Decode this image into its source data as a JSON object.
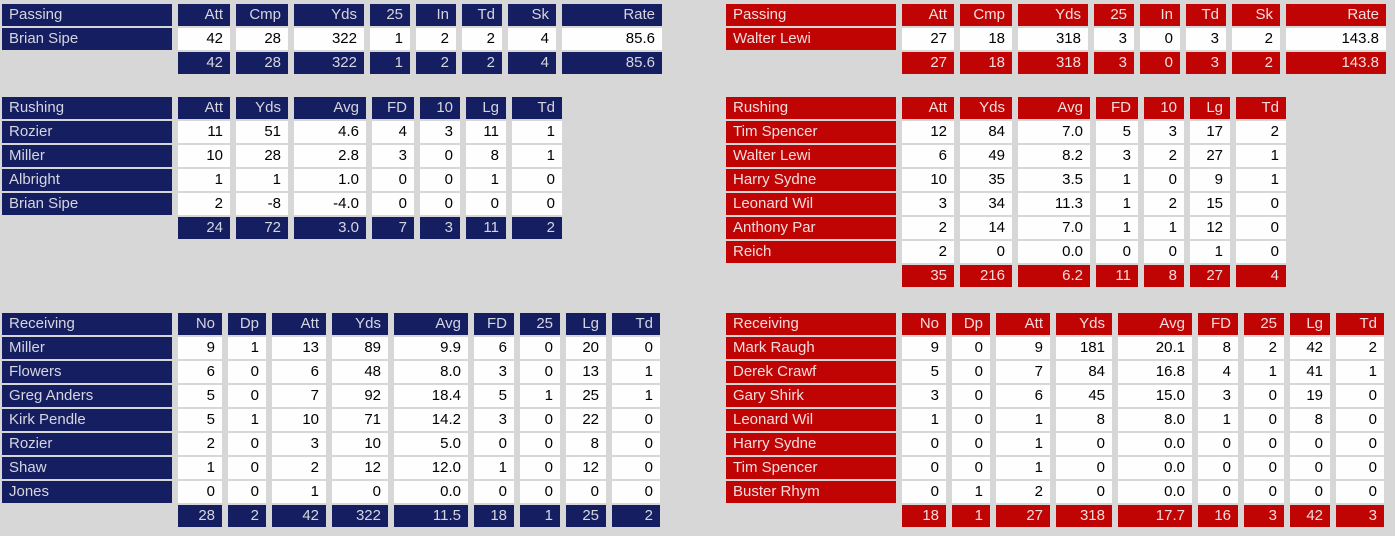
{
  "page": {
    "background": "#d7d7d7"
  },
  "colors": {
    "team_a_accent": "#141e61",
    "team_a_accent_text": "#d6d6de",
    "team_b_accent": "#c00404",
    "team_b_accent_text": "#f2dede",
    "stat_cell_background": "#fefefe",
    "stat_cell_text": "#000000"
  },
  "teams": [
    {
      "name": "team-a",
      "accent": "#141e61",
      "accent_text": "#d6d6de",
      "tables": {
        "passing": {
          "title": "Passing",
          "headers": [
            "Att",
            "Cmp",
            "Yds",
            "25",
            "In",
            "Td",
            "Sk",
            "Rate"
          ],
          "rows": [
            {
              "name": "Brian Sipe",
              "values": [
                "42",
                "28",
                "322",
                "1",
                "2",
                "2",
                "4",
                "85.6"
              ]
            }
          ],
          "totals": [
            "42",
            "28",
            "322",
            "1",
            "2",
            "2",
            "4",
            "85.6"
          ]
        },
        "rushing": {
          "title": "Rushing",
          "headers": [
            "Att",
            "Yds",
            "Avg",
            "FD",
            "10",
            "Lg",
            "Td"
          ],
          "rows": [
            {
              "name": "Rozier",
              "values": [
                "11",
                "51",
                "4.6",
                "4",
                "3",
                "11",
                "1"
              ]
            },
            {
              "name": "Miller",
              "values": [
                "10",
                "28",
                "2.8",
                "3",
                "0",
                "8",
                "1"
              ]
            },
            {
              "name": "Albright",
              "values": [
                "1",
                "1",
                "1.0",
                "0",
                "0",
                "1",
                "0"
              ]
            },
            {
              "name": "Brian Sipe",
              "values": [
                "2",
                "-8",
                "-4.0",
                "0",
                "0",
                "0",
                "0"
              ]
            }
          ],
          "totals": [
            "24",
            "72",
            "3.0",
            "7",
            "3",
            "11",
            "2"
          ]
        },
        "receiving": {
          "title": "Receiving",
          "headers": [
            "No",
            "Dp",
            "Att",
            "Yds",
            "Avg",
            "FD",
            "25",
            "Lg",
            "Td"
          ],
          "rows": [
            {
              "name": "Miller",
              "values": [
                "9",
                "1",
                "13",
                "89",
                "9.9",
                "6",
                "0",
                "20",
                "0"
              ]
            },
            {
              "name": "Flowers",
              "values": [
                "6",
                "0",
                "6",
                "48",
                "8.0",
                "3",
                "0",
                "13",
                "1"
              ]
            },
            {
              "name": "Greg Anders",
              "values": [
                "5",
                "0",
                "7",
                "92",
                "18.4",
                "5",
                "1",
                "25",
                "1"
              ]
            },
            {
              "name": "Kirk Pendle",
              "values": [
                "5",
                "1",
                "10",
                "71",
                "14.2",
                "3",
                "0",
                "22",
                "0"
              ]
            },
            {
              "name": "Rozier",
              "values": [
                "2",
                "0",
                "3",
                "10",
                "5.0",
                "0",
                "0",
                "8",
                "0"
              ]
            },
            {
              "name": "Shaw",
              "values": [
                "1",
                "0",
                "2",
                "12",
                "12.0",
                "1",
                "0",
                "12",
                "0"
              ]
            },
            {
              "name": "Jones",
              "values": [
                "0",
                "0",
                "1",
                "0",
                "0.0",
                "0",
                "0",
                "0",
                "0"
              ]
            }
          ],
          "totals": [
            "28",
            "2",
            "42",
            "322",
            "11.5",
            "18",
            "1",
            "25",
            "2"
          ]
        }
      }
    },
    {
      "name": "team-b",
      "accent": "#c00404",
      "accent_text": "#f2dede",
      "tables": {
        "passing": {
          "title": "Passing",
          "headers": [
            "Att",
            "Cmp",
            "Yds",
            "25",
            "In",
            "Td",
            "Sk",
            "Rate"
          ],
          "rows": [
            {
              "name": "Walter Lewi",
              "values": [
                "27",
                "18",
                "318",
                "3",
                "0",
                "3",
                "2",
                "143.8"
              ]
            }
          ],
          "totals": [
            "27",
            "18",
            "318",
            "3",
            "0",
            "3",
            "2",
            "143.8"
          ]
        },
        "rushing": {
          "title": "Rushing",
          "headers": [
            "Att",
            "Yds",
            "Avg",
            "FD",
            "10",
            "Lg",
            "Td"
          ],
          "rows": [
            {
              "name": "Tim Spencer",
              "values": [
                "12",
                "84",
                "7.0",
                "5",
                "3",
                "17",
                "2"
              ]
            },
            {
              "name": "Walter Lewi",
              "values": [
                "6",
                "49",
                "8.2",
                "3",
                "2",
                "27",
                "1"
              ]
            },
            {
              "name": "Harry Sydne",
              "values": [
                "10",
                "35",
                "3.5",
                "1",
                "0",
                "9",
                "1"
              ]
            },
            {
              "name": "Leonard Wil",
              "values": [
                "3",
                "34",
                "11.3",
                "1",
                "2",
                "15",
                "0"
              ]
            },
            {
              "name": "Anthony Par",
              "values": [
                "2",
                "14",
                "7.0",
                "1",
                "1",
                "12",
                "0"
              ]
            },
            {
              "name": "Reich",
              "values": [
                "2",
                "0",
                "0.0",
                "0",
                "0",
                "1",
                "0"
              ]
            }
          ],
          "totals": [
            "35",
            "216",
            "6.2",
            "11",
            "8",
            "27",
            "4"
          ]
        },
        "receiving": {
          "title": "Receiving",
          "headers": [
            "No",
            "Dp",
            "Att",
            "Yds",
            "Avg",
            "FD",
            "25",
            "Lg",
            "Td"
          ],
          "rows": [
            {
              "name": "Mark Raugh",
              "values": [
                "9",
                "0",
                "9",
                "181",
                "20.1",
                "8",
                "2",
                "42",
                "2"
              ]
            },
            {
              "name": "Derek Crawf",
              "values": [
                "5",
                "0",
                "7",
                "84",
                "16.8",
                "4",
                "1",
                "41",
                "1"
              ]
            },
            {
              "name": "Gary Shirk",
              "values": [
                "3",
                "0",
                "6",
                "45",
                "15.0",
                "3",
                "0",
                "19",
                "0"
              ]
            },
            {
              "name": "Leonard Wil",
              "values": [
                "1",
                "0",
                "1",
                "8",
                "8.0",
                "1",
                "0",
                "8",
                "0"
              ]
            },
            {
              "name": "Harry Sydne",
              "values": [
                "0",
                "0",
                "1",
                "0",
                "0.0",
                "0",
                "0",
                "0",
                "0"
              ]
            },
            {
              "name": "Tim Spencer",
              "values": [
                "0",
                "0",
                "1",
                "0",
                "0.0",
                "0",
                "0",
                "0",
                "0"
              ]
            },
            {
              "name": "Buster Rhym",
              "values": [
                "0",
                "1",
                "2",
                "0",
                "0.0",
                "0",
                "0",
                "0",
                "0"
              ]
            }
          ],
          "totals": [
            "18",
            "1",
            "27",
            "318",
            "17.7",
            "16",
            "3",
            "42",
            "3"
          ]
        }
      }
    }
  ]
}
